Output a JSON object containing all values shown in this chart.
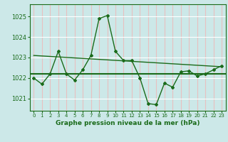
{
  "title": "Graphe pression niveau de la mer (hPa)",
  "background_color": "#cce8e8",
  "grid_color": "#e8c8c8",
  "line_color": "#1a6b1a",
  "x_ticks": [
    0,
    1,
    2,
    3,
    4,
    5,
    6,
    7,
    8,
    9,
    10,
    11,
    12,
    13,
    14,
    15,
    16,
    17,
    18,
    19,
    20,
    21,
    22,
    23
  ],
  "y_ticks": [
    1021,
    1022,
    1023,
    1024,
    1025
  ],
  "ylim": [
    1020.4,
    1025.6
  ],
  "xlim": [
    -0.5,
    23.5
  ],
  "series1_x": [
    0,
    1,
    2,
    3,
    4,
    5,
    6,
    7,
    8,
    9,
    10,
    11,
    12,
    13,
    14,
    15,
    16,
    17,
    18,
    19,
    20,
    21,
    22,
    23
  ],
  "series1_y": [
    1022.0,
    1021.7,
    1022.2,
    1023.3,
    1022.2,
    1021.9,
    1022.4,
    1023.1,
    1024.9,
    1025.05,
    1023.3,
    1022.85,
    1022.85,
    1022.0,
    1020.75,
    1020.7,
    1021.75,
    1021.55,
    1022.3,
    1022.35,
    1022.1,
    1022.2,
    1022.4,
    1022.6
  ],
  "flat_line_y": 1022.2,
  "trend_x": [
    0,
    23
  ],
  "trend_y": [
    1023.1,
    1022.55
  ]
}
